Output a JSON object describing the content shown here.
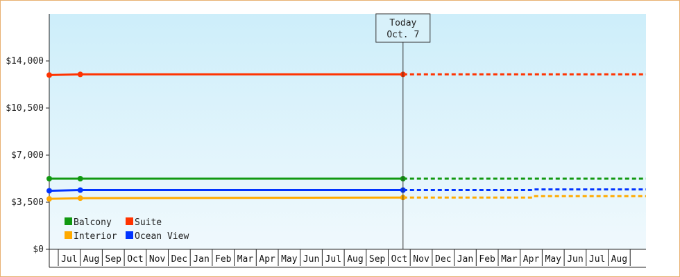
{
  "chart_data": {
    "type": "line",
    "ylim": [
      0,
      17500
    ],
    "y_ticks": [
      {
        "value": 0,
        "label": "$0"
      },
      {
        "value": 3500,
        "label": "$3,500"
      },
      {
        "value": 7000,
        "label": "$7,000"
      },
      {
        "value": 10500,
        "label": "$10,500"
      },
      {
        "value": 14000,
        "label": "$14,000"
      }
    ],
    "months": [
      "Jul",
      "Aug",
      "Sep",
      "Oct",
      "Nov",
      "Dec",
      "Jan",
      "Feb",
      "Mar",
      "Apr",
      "May",
      "Jun",
      "Jul",
      "Aug",
      "Sep",
      "Oct",
      "Nov",
      "Dec",
      "Jan",
      "Feb",
      "Mar",
      "Apr",
      "May",
      "Jun",
      "Jul",
      "Aug"
    ],
    "x_start": "2025-06-15",
    "x_end": "2027-09-01",
    "today": {
      "line1": "Today",
      "line2": "Oct. 7",
      "date": "2026-10-07"
    },
    "legend_placement": "bottom-left",
    "series": [
      {
        "name": "Suite",
        "color": "#ff3300",
        "actual": [
          [
            "2025-06-15",
            12950
          ],
          [
            "2025-07-27",
            13000
          ],
          [
            "2026-10-07",
            13000
          ]
        ],
        "forecast": [
          [
            "2026-10-07",
            13000
          ],
          [
            "2027-09-01",
            13000
          ]
        ]
      },
      {
        "name": "Balcony",
        "color": "#119911",
        "actual": [
          [
            "2025-06-15",
            5250
          ],
          [
            "2025-07-27",
            5250
          ],
          [
            "2026-10-07",
            5250
          ]
        ],
        "forecast": [
          [
            "2026-10-07",
            5250
          ],
          [
            "2027-09-01",
            5250
          ]
        ]
      },
      {
        "name": "Ocean View",
        "color": "#0033ff",
        "actual": [
          [
            "2025-06-15",
            4350
          ],
          [
            "2025-07-27",
            4400
          ],
          [
            "2026-10-07",
            4400
          ]
        ],
        "forecast": [
          [
            "2026-10-07",
            4400
          ],
          [
            "2027-04-01",
            4400
          ],
          [
            "2027-04-02",
            4450
          ],
          [
            "2027-09-01",
            4450
          ]
        ]
      },
      {
        "name": "Interior",
        "color": "#ffaa00",
        "actual": [
          [
            "2025-06-15",
            3750
          ],
          [
            "2025-07-27",
            3800
          ],
          [
            "2026-10-07",
            3850
          ]
        ],
        "forecast": [
          [
            "2026-10-07",
            3850
          ],
          [
            "2027-04-01",
            3850
          ],
          [
            "2027-04-02",
            3950
          ],
          [
            "2027-09-01",
            3950
          ]
        ]
      }
    ],
    "legend": [
      {
        "name": "Balcony",
        "color": "#119911"
      },
      {
        "name": "Suite",
        "color": "#ff3300"
      },
      {
        "name": "Interior",
        "color": "#ffaa00"
      },
      {
        "name": "Ocean View",
        "color": "#0033ff"
      }
    ]
  }
}
